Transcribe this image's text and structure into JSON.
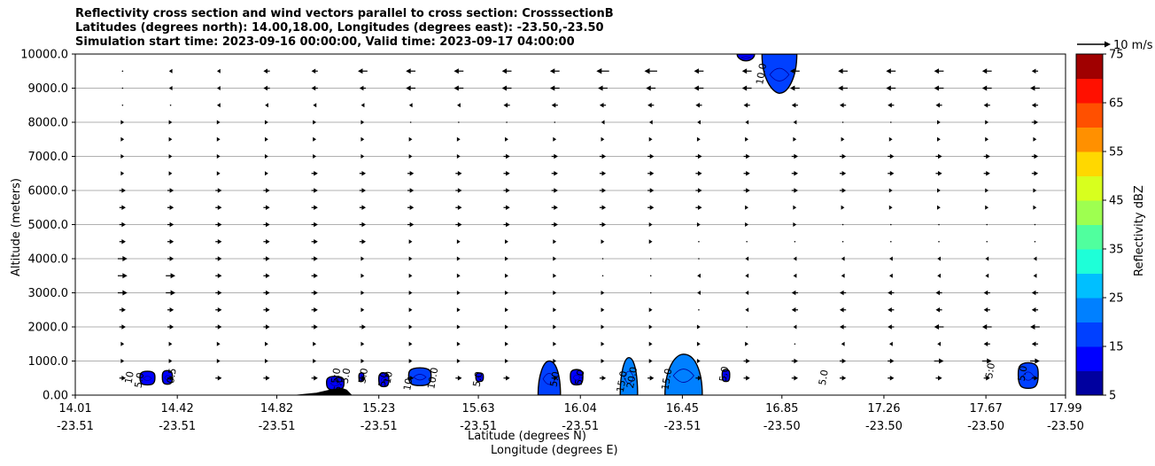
{
  "chart_data": {
    "type": "contour_vector_cross_section",
    "title_lines": [
      "Reflectivity cross section and wind vectors parallel to cross section: CrosssectionB",
      "Latitudes (degrees north): 14.00,18.00, Longitudes (degrees east): -23.50,-23.50",
      "Simulation start time: 2023-09-16 00:00:00, Valid time: 2023-09-17 04:00:00"
    ],
    "ylabel": "Altitude (meters)",
    "xlabel_primary": "Latitude (degrees N)",
    "xlabel_secondary": "Longitude (degrees E)",
    "xlim": [
      14.01,
      17.99
    ],
    "ylim": [
      0,
      10000
    ],
    "x_ticks": [
      {
        "x": 14.01,
        "lat": "14.01",
        "lon": "-23.51"
      },
      {
        "x": 14.42,
        "lat": "14.42",
        "lon": "-23.51"
      },
      {
        "x": 14.82,
        "lat": "14.82",
        "lon": "-23.51"
      },
      {
        "x": 15.23,
        "lat": "15.23",
        "lon": "-23.51"
      },
      {
        "x": 15.63,
        "lat": "15.63",
        "lon": "-23.51"
      },
      {
        "x": 16.04,
        "lat": "16.04",
        "lon": "-23.51"
      },
      {
        "x": 16.45,
        "lat": "16.45",
        "lon": "-23.51"
      },
      {
        "x": 16.85,
        "lat": "16.85",
        "lon": "-23.50"
      },
      {
        "x": 17.26,
        "lat": "17.26",
        "lon": "-23.50"
      },
      {
        "x": 17.67,
        "lat": "17.67",
        "lon": "-23.50"
      },
      {
        "x": 17.99,
        "lat": "17.99",
        "lon": "-23.50"
      }
    ],
    "y_ticks": [
      {
        "v": 0,
        "label": "0.00"
      },
      {
        "v": 1000,
        "label": "1000.0"
      },
      {
        "v": 2000,
        "label": "2000.0"
      },
      {
        "v": 3000,
        "label": "3000.0"
      },
      {
        "v": 4000,
        "label": "4000.0"
      },
      {
        "v": 5000,
        "label": "5000.0"
      },
      {
        "v": 6000,
        "label": "6000.0"
      },
      {
        "v": 7000,
        "label": "7000.0"
      },
      {
        "v": 8000,
        "label": "8000.0"
      },
      {
        "v": 9000,
        "label": "9000.0"
      },
      {
        "v": 10000,
        "label": "10000.0"
      }
    ],
    "grid": "horizontal",
    "colorbar": {
      "label": "Reflectivity dBZ",
      "min": 5,
      "max": 75,
      "step": 5,
      "tick_labels": [
        "5",
        "15",
        "25",
        "35",
        "45",
        "55",
        "65",
        "75"
      ],
      "colors": [
        "#00009f",
        "#0000ff",
        "#0040ff",
        "#0080ff",
        "#00bfff",
        "#1effd8",
        "#50ff9e",
        "#9eff50",
        "#d8ff1e",
        "#ffd800",
        "#ff9000",
        "#ff5000",
        "#ff1000",
        "#a00000"
      ]
    },
    "wind_reference": {
      "label": "10 m/s",
      "speed": 10
    },
    "wind_field": {
      "x_step": 0.193,
      "x_start": 14.2,
      "altitudes": [
        500,
        1000,
        1500,
        2000,
        2500,
        3000,
        3500,
        4000,
        4500,
        5000,
        5500,
        6000,
        6500,
        7000,
        7500,
        8000,
        8500,
        9000,
        9500
      ],
      "u_by_level": [
        [
          2,
          2,
          2,
          2,
          2,
          2,
          2,
          2,
          2,
          2,
          2,
          2,
          2,
          2,
          2,
          2,
          2,
          2,
          2,
          2,
          2
        ],
        [
          1,
          1,
          1,
          1,
          1,
          1,
          1,
          1,
          1,
          1,
          1,
          1,
          1,
          2,
          2,
          2,
          2,
          3,
          3,
          3,
          3
        ],
        [
          1,
          1,
          1,
          1,
          1,
          1,
          1,
          1,
          1,
          1,
          1,
          1,
          1,
          1,
          0,
          -1,
          -1,
          -1,
          -2,
          -2,
          -2
        ],
        [
          2,
          2,
          2,
          2,
          2,
          2,
          1,
          1,
          1,
          1,
          1,
          1,
          1,
          0,
          -1,
          -2,
          -2,
          -3,
          -3,
          -3,
          -3
        ],
        [
          2,
          2,
          2,
          2,
          2,
          1,
          1,
          1,
          1,
          1,
          1,
          1,
          0,
          -1,
          -2,
          -2,
          -2,
          -2,
          -2,
          -2,
          -2
        ],
        [
          3,
          3,
          2,
          2,
          2,
          1,
          1,
          1,
          1,
          1,
          1,
          0,
          -1,
          -1,
          -2,
          -2,
          -2,
          -2,
          -2,
          -2,
          -2
        ],
        [
          3,
          3,
          2,
          2,
          2,
          1,
          1,
          1,
          1,
          1,
          0,
          0,
          -1,
          -1,
          -1,
          -1,
          -1,
          -1,
          -1,
          -1,
          -1
        ],
        [
          3,
          2,
          2,
          2,
          2,
          1,
          1,
          1,
          1,
          1,
          0,
          0,
          0,
          -1,
          -1,
          -1,
          -1,
          -1,
          -1,
          -1,
          -1
        ],
        [
          2,
          2,
          2,
          2,
          2,
          2,
          1,
          1,
          1,
          1,
          1,
          1,
          0,
          0,
          0,
          0,
          0,
          0,
          0,
          0,
          0
        ],
        [
          2,
          2,
          2,
          2,
          2,
          2,
          2,
          2,
          2,
          2,
          2,
          1,
          1,
          1,
          1,
          0,
          0,
          0,
          0,
          0,
          0
        ],
        [
          2,
          2,
          2,
          2,
          2,
          2,
          2,
          2,
          2,
          2,
          2,
          2,
          2,
          1,
          1,
          1,
          1,
          1,
          1,
          1,
          1
        ],
        [
          2,
          2,
          2,
          2,
          2,
          2,
          2,
          2,
          2,
          2,
          2,
          2,
          2,
          2,
          2,
          2,
          1,
          1,
          1,
          1,
          1
        ],
        [
          1,
          1,
          1,
          1,
          2,
          2,
          2,
          2,
          2,
          2,
          2,
          2,
          2,
          2,
          2,
          2,
          2,
          2,
          2,
          2,
          2
        ],
        [
          1,
          1,
          1,
          1,
          1,
          1,
          1,
          1,
          2,
          2,
          2,
          2,
          2,
          2,
          2,
          2,
          2,
          2,
          2,
          2,
          2
        ],
        [
          1,
          1,
          1,
          1,
          1,
          1,
          1,
          1,
          1,
          1,
          1,
          1,
          1,
          1,
          1,
          1,
          1,
          1,
          1,
          1,
          1
        ],
        [
          1,
          1,
          1,
          1,
          1,
          1,
          0,
          0,
          0,
          0,
          -1,
          -1,
          -1,
          -1,
          -1,
          0,
          0,
          1,
          1,
          2,
          2
        ],
        [
          0,
          0,
          -1,
          -1,
          -1,
          -1,
          -1,
          -1,
          -2,
          -2,
          -2,
          -2,
          -2,
          -2,
          -2,
          -2,
          -2,
          -2,
          -2,
          -2,
          -2
        ],
        [
          0,
          -1,
          -1,
          -2,
          -2,
          -2,
          -3,
          -3,
          -3,
          -3,
          -3,
          -3,
          -3,
          -3,
          -3,
          -3,
          -3,
          -3,
          -3,
          -3,
          -3
        ],
        [
          0,
          -1,
          -1,
          -2,
          -2,
          -3,
          -3,
          -3,
          -3,
          -3,
          -4,
          -4,
          -3,
          -3,
          -3,
          -3,
          -3,
          -3,
          -3,
          -2,
          -2
        ]
      ]
    },
    "reflectivity_cells": [
      {
        "x_min": 14.27,
        "x_max": 14.33,
        "z_min": 300,
        "z_max": 700,
        "level": "10"
      },
      {
        "x_min": 14.36,
        "x_max": 14.4,
        "z_min": 320,
        "z_max": 720,
        "level": "10"
      },
      {
        "x_min": 15.02,
        "x_max": 15.09,
        "z_min": 150,
        "z_max": 550,
        "level": "10"
      },
      {
        "x_min": 15.15,
        "x_max": 15.17,
        "z_min": 400,
        "z_max": 650,
        "level": "10"
      },
      {
        "x_min": 15.23,
        "x_max": 15.27,
        "z_min": 250,
        "z_max": 650,
        "level": "10"
      },
      {
        "x_min": 15.35,
        "x_max": 15.44,
        "z_min": 280,
        "z_max": 800,
        "level": "15"
      },
      {
        "x_min": 15.62,
        "x_max": 15.65,
        "z_min": 400,
        "z_max": 650,
        "level": "10"
      },
      {
        "x_min": 15.87,
        "x_max": 15.96,
        "z_min": 0,
        "z_max": 1000,
        "level": "15"
      },
      {
        "x_min": 16.0,
        "x_max": 16.05,
        "z_min": 300,
        "z_max": 750,
        "level": "10"
      },
      {
        "x_min": 16.2,
        "x_max": 16.27,
        "z_min": 0,
        "z_max": 1100,
        "level": "20"
      },
      {
        "x_min": 16.38,
        "x_max": 16.53,
        "z_min": 0,
        "z_max": 1200,
        "level": "20"
      },
      {
        "x_min": 16.61,
        "x_max": 16.64,
        "z_min": 400,
        "z_max": 750,
        "level": "10"
      },
      {
        "x_min": 17.8,
        "x_max": 17.88,
        "z_min": 200,
        "z_max": 950,
        "level": "15"
      },
      {
        "x_min": 16.67,
        "x_max": 16.74,
        "z_min": 9800,
        "z_max": 10000,
        "level": "10"
      },
      {
        "x_min": 16.77,
        "x_max": 16.91,
        "z_min": 8850,
        "z_max": 10000,
        "level": "15"
      }
    ],
    "contour_labels": [
      {
        "x": 14.24,
        "z": 500,
        "text": "10"
      },
      {
        "x": 14.28,
        "z": 420,
        "text": "5.0"
      },
      {
        "x": 14.41,
        "z": 550,
        "text": "0.5"
      },
      {
        "x": 15.07,
        "z": 550,
        "text": "5:0"
      },
      {
        "x": 15.08,
        "z": 300,
        "text": "5.0"
      },
      {
        "x": 15.11,
        "z": 550,
        "text": "5.0"
      },
      {
        "x": 15.18,
        "z": 550,
        "text": "5.0"
      },
      {
        "x": 15.26,
        "z": 450,
        "text": "5.0"
      },
      {
        "x": 15.28,
        "z": 500,
        "text": "10"
      },
      {
        "x": 15.36,
        "z": 300,
        "text": "10"
      },
      {
        "x": 15.46,
        "z": 480,
        "text": "10.0"
      },
      {
        "x": 15.64,
        "z": 450,
        "text": "5.0"
      },
      {
        "x": 15.95,
        "z": 450,
        "text": "5.0"
      },
      {
        "x": 16.05,
        "z": 500,
        "text": "5.0"
      },
      {
        "x": 16.22,
        "z": 380,
        "text": "15.0"
      },
      {
        "x": 16.26,
        "z": 500,
        "text": "20.0"
      },
      {
        "x": 16.4,
        "z": 450,
        "text": "15.0"
      },
      {
        "x": 16.63,
        "z": 600,
        "text": "5.0"
      },
      {
        "x": 17.03,
        "z": 500,
        "text": "5.0"
      },
      {
        "x": 17.7,
        "z": 700,
        "text": "5:0"
      },
      {
        "x": 17.83,
        "z": 620,
        "text": "5.0"
      },
      {
        "x": 16.78,
        "z": 9400,
        "text": "10.0"
      }
    ],
    "terrain": {
      "x": [
        14.9,
        14.98,
        15.04,
        15.08,
        15.1,
        15.12
      ],
      "z": [
        0,
        60,
        160,
        200,
        150,
        0
      ]
    }
  }
}
